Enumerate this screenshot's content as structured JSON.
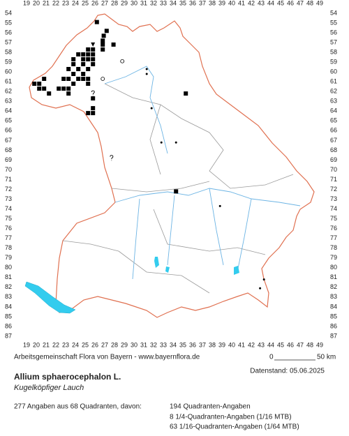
{
  "map": {
    "columns": [
      19,
      20,
      21,
      22,
      23,
      24,
      25,
      26,
      27,
      28,
      29,
      30,
      31,
      32,
      33,
      34,
      35,
      36,
      37,
      38,
      39,
      40,
      41,
      42,
      43,
      44,
      45,
      46,
      47,
      48,
      49
    ],
    "rows": [
      54,
      55,
      56,
      57,
      58,
      59,
      60,
      61,
      62,
      63,
      64,
      65,
      66,
      67,
      68,
      69,
      70,
      71,
      72,
      73,
      74,
      75,
      76,
      77,
      78,
      79,
      80,
      81,
      82,
      83,
      84,
      85,
      86,
      87
    ],
    "markers": {
      "square": [
        [
          26.2,
          54.9
        ],
        [
          27.2,
          55.8
        ],
        [
          26.9,
          56.3
        ],
        [
          26.8,
          56.8
        ],
        [
          27.9,
          57.2
        ],
        [
          26.8,
          57.2
        ],
        [
          25.8,
          57.7
        ],
        [
          25.3,
          57.7
        ],
        [
          26.8,
          57.7
        ],
        [
          24.3,
          58.2
        ],
        [
          24.8,
          58.2
        ],
        [
          25.3,
          58.2
        ],
        [
          25.8,
          58.2
        ],
        [
          23.8,
          58.7
        ],
        [
          24.8,
          58.7
        ],
        [
          25.3,
          58.7
        ],
        [
          25.8,
          58.7
        ],
        [
          23.8,
          59.2
        ],
        [
          24.8,
          59.2
        ],
        [
          25.8,
          59.2
        ],
        [
          23.3,
          59.7
        ],
        [
          24.3,
          59.7
        ],
        [
          25.3,
          59.7
        ],
        [
          23.8,
          60.2
        ],
        [
          24.8,
          60.2
        ],
        [
          22.8,
          60.7
        ],
        [
          23.3,
          60.7
        ],
        [
          24.3,
          60.7
        ],
        [
          24.8,
          60.7
        ],
        [
          25.3,
          60.7
        ],
        [
          19.8,
          61.2
        ],
        [
          20.3,
          61.2
        ],
        [
          20.8,
          60.7
        ],
        [
          23.8,
          61.2
        ],
        [
          25.3,
          61.2
        ],
        [
          20.3,
          61.7
        ],
        [
          20.8,
          61.7
        ],
        [
          22.3,
          61.7
        ],
        [
          22.8,
          61.7
        ],
        [
          23.3,
          61.7
        ],
        [
          21.3,
          62.2
        ],
        [
          23.3,
          62.2
        ],
        [
          25.8,
          62.7
        ],
        [
          25.8,
          63.7
        ],
        [
          25.3,
          64.2
        ],
        [
          25.8,
          64.2
        ],
        [
          34.3,
          72.2
        ],
        [
          35.3,
          62.2
        ]
      ],
      "triangle": [
        [
          25.8,
          57.2
        ]
      ],
      "dot": [
        [
          31.3,
          59.7
        ],
        [
          31.3,
          60.2
        ],
        [
          31.8,
          63.7
        ],
        [
          32.8,
          67.2
        ],
        [
          34.3,
          67.2
        ],
        [
          38.8,
          73.7
        ],
        [
          43.3,
          81.2
        ],
        [
          42.9,
          82.1
        ]
      ],
      "question": [
        [
          25.8,
          62.2
        ],
        [
          27.7,
          68.8
        ]
      ],
      "circle": [
        [
          26.8,
          60.7
        ],
        [
          28.8,
          58.9
        ]
      ]
    }
  },
  "footer": {
    "credit": "Arbeitsgemeinschaft Flora von Bayern - www.bayernflora.de",
    "scale_start": "0",
    "scale_end": "50 km",
    "date": "Datenstand: 05.06.2025",
    "species": "Allium sphaerocephalon L.",
    "common_name": "Kugelköpfiger Lauch",
    "summary": "277 Angaben aus 68 Quadranten, davon:",
    "counts": [
      "194 Quadranten-Angaben",
      "8 1/4-Quadranten-Angaben (1/16 MTB)",
      "63 1/16-Quadranten-Angaben (1/64 MTB)"
    ]
  }
}
